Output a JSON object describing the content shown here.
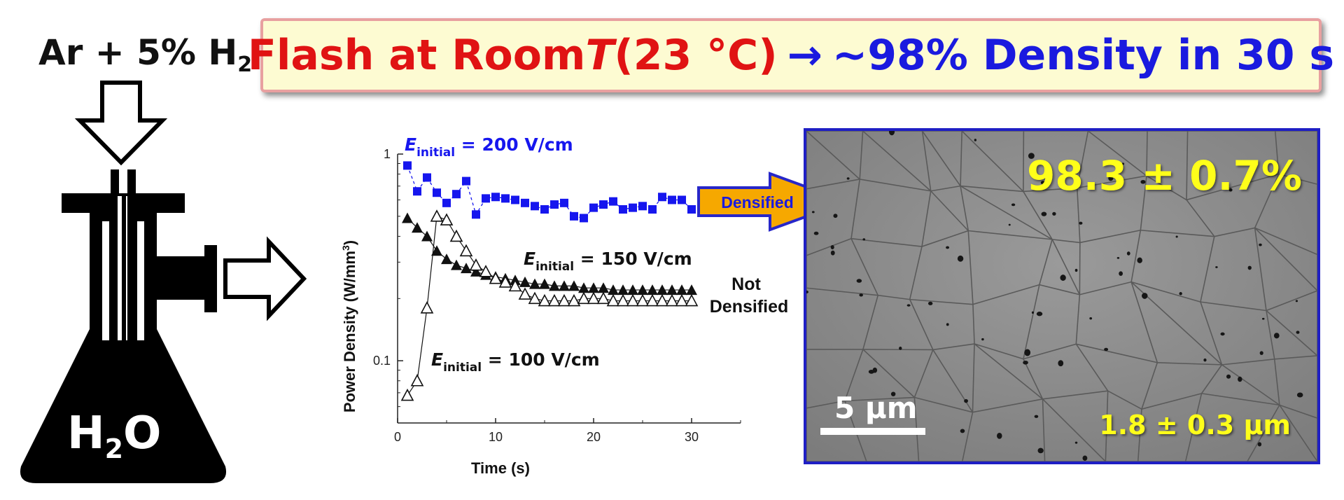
{
  "banner": {
    "part1": "Flash at Room ",
    "part_T": "T",
    "part2": " (23 °C)",
    "arrow": "→",
    "part3": "~98% Density in 30 s"
  },
  "flask": {
    "gas_main": "Ar + 5% H",
    "gas_sub": "2",
    "water_h": "H",
    "water_sub": "2",
    "water_o": "O"
  },
  "chart_data": {
    "type": "scatter",
    "xlabel": "Time (s)",
    "ylabel_main": "Power Density (W/mm",
    "ylabel_sup": "3",
    "ylabel_end": ")",
    "xlim": [
      0,
      35
    ],
    "ylim": [
      0.05,
      1
    ],
    "yscale": "log",
    "x_ticks": [
      0,
      10,
      20,
      30
    ],
    "y_ticks": [
      {
        "value": 1,
        "label": "1"
      },
      {
        "value": 0.1,
        "label": "0.1"
      }
    ],
    "series": [
      {
        "name_prefix": "E",
        "name_sub": "initial",
        "name_rest": " = 200 V/cm",
        "marker": "square-filled",
        "color": "#1616ee",
        "x": [
          1,
          2,
          3,
          4,
          5,
          6,
          7,
          8,
          9,
          10,
          11,
          12,
          13,
          14,
          15,
          16,
          17,
          18,
          19,
          20,
          21,
          22,
          23,
          24,
          25,
          26,
          27,
          28,
          29,
          30
        ],
        "y": [
          0.88,
          0.66,
          0.77,
          0.65,
          0.58,
          0.64,
          0.74,
          0.51,
          0.61,
          0.62,
          0.61,
          0.6,
          0.58,
          0.56,
          0.54,
          0.57,
          0.58,
          0.5,
          0.49,
          0.55,
          0.57,
          0.59,
          0.54,
          0.55,
          0.56,
          0.54,
          0.62,
          0.6,
          0.6,
          0.54
        ]
      },
      {
        "name_prefix": "E",
        "name_sub": "initial",
        "name_rest": " = 150 V/cm",
        "marker": "triangle-filled",
        "color": "#111111",
        "x": [
          1,
          2,
          3,
          4,
          5,
          6,
          7,
          8,
          9,
          10,
          11,
          12,
          13,
          14,
          15,
          16,
          17,
          18,
          19,
          20,
          21,
          22,
          23,
          24,
          25,
          26,
          27,
          28,
          29,
          30
        ],
        "y": [
          0.49,
          0.44,
          0.4,
          0.34,
          0.31,
          0.29,
          0.28,
          0.27,
          0.26,
          0.255,
          0.25,
          0.245,
          0.24,
          0.235,
          0.235,
          0.23,
          0.23,
          0.23,
          0.225,
          0.225,
          0.225,
          0.22,
          0.22,
          0.22,
          0.22,
          0.22,
          0.22,
          0.22,
          0.22,
          0.22
        ]
      },
      {
        "name_prefix": "E",
        "name_sub": "initial",
        "name_rest": " = 100 V/cm",
        "marker": "triangle-open",
        "color": "#111111",
        "x": [
          1,
          2,
          3,
          4,
          5,
          6,
          7,
          8,
          9,
          10,
          11,
          12,
          13,
          14,
          15,
          16,
          17,
          18,
          19,
          20,
          21,
          22,
          23,
          24,
          25,
          26,
          27,
          28,
          29,
          30
        ],
        "y": [
          0.068,
          0.08,
          0.18,
          0.5,
          0.48,
          0.4,
          0.34,
          0.29,
          0.27,
          0.25,
          0.24,
          0.23,
          0.21,
          0.2,
          0.195,
          0.195,
          0.195,
          0.195,
          0.2,
          0.2,
          0.2,
          0.195,
          0.195,
          0.195,
          0.195,
          0.195,
          0.195,
          0.195,
          0.195,
          0.195
        ]
      }
    ],
    "annotations": {
      "not_densified_1": "Not",
      "not_densified_2": "Densified",
      "densified": "Densified"
    }
  },
  "sem": {
    "density": "98.3 ± 0.7%",
    "grain": "1.8 ± 0.3 µm",
    "scale": "5 µm"
  },
  "colors": {
    "banner_red": "#e01313",
    "banner_blue": "#1a1adf",
    "highlight_yellow": "#ffff1a",
    "densified_arrow": "#f6a800",
    "sem_border": "#1f1fc4"
  }
}
